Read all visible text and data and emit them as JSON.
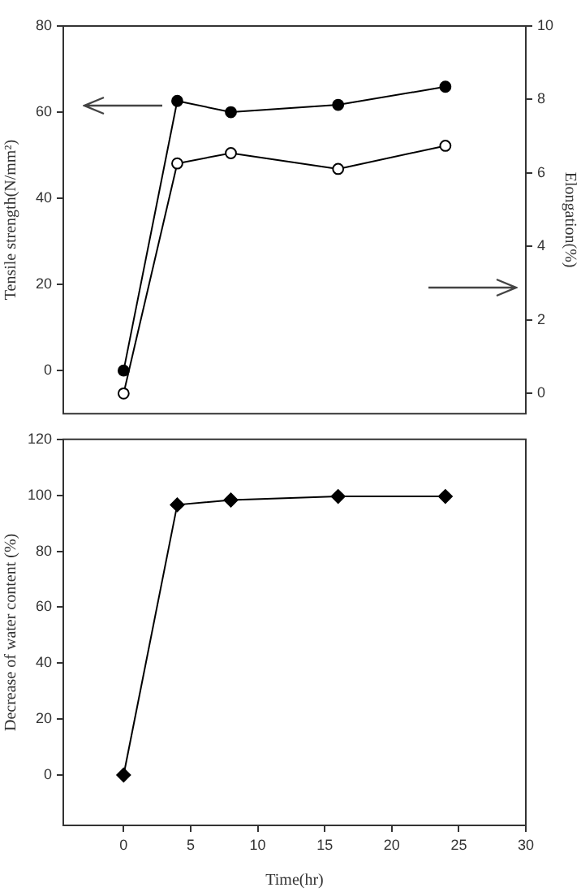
{
  "chart_data": [
    {
      "type": "line",
      "ylabel": "Tensile strength(N/mm²)",
      "y2label": "Elongation(%)",
      "xlim": [
        -4.5,
        30
      ],
      "ylim": [
        -10,
        80
      ],
      "yticks": [
        0,
        20,
        40,
        60,
        80
      ],
      "y2lim": [
        -0.55,
        10
      ],
      "y2ticks": [
        0,
        2,
        4,
        6,
        8,
        10
      ],
      "tick_labels": "y",
      "grid": false,
      "legend": false,
      "line_style": "solid",
      "series": [
        {
          "color": "#000000",
          "marker": "circle",
          "x": [
            0,
            4,
            8,
            16,
            24
          ],
          "values": [
            0,
            62.6,
            60.0,
            61.7,
            65.9
          ]
        },
        {
          "color": "#000000",
          "colors": [
            "#ffffff",
            "#ffffff",
            "#ffffff",
            "#ffffff",
            "#ffffff"
          ],
          "marker": "circle",
          "axis": "y2",
          "x": [
            0,
            4,
            8,
            16,
            24
          ],
          "values": [
            0,
            6.26,
            6.54,
            6.11,
            6.74
          ]
        }
      ]
    },
    {
      "type": "line",
      "xlabel": "Time(hr)",
      "ylabel": "Decrease of water content (%)",
      "xlim": [
        -4.5,
        30
      ],
      "xticks": [
        0,
        5,
        10,
        15,
        20,
        25,
        30
      ],
      "ylim": [
        -18,
        120
      ],
      "yticks": [
        0,
        20,
        40,
        60,
        80,
        100,
        120
      ],
      "grid": false,
      "legend": false,
      "line_style": "solid",
      "series": [
        {
          "color": "#000000",
          "marker": "diamond",
          "x": [
            0,
            4,
            8,
            16,
            24
          ],
          "values": [
            0,
            96.6,
            98.3,
            99.6,
            99.6
          ]
        }
      ]
    }
  ]
}
